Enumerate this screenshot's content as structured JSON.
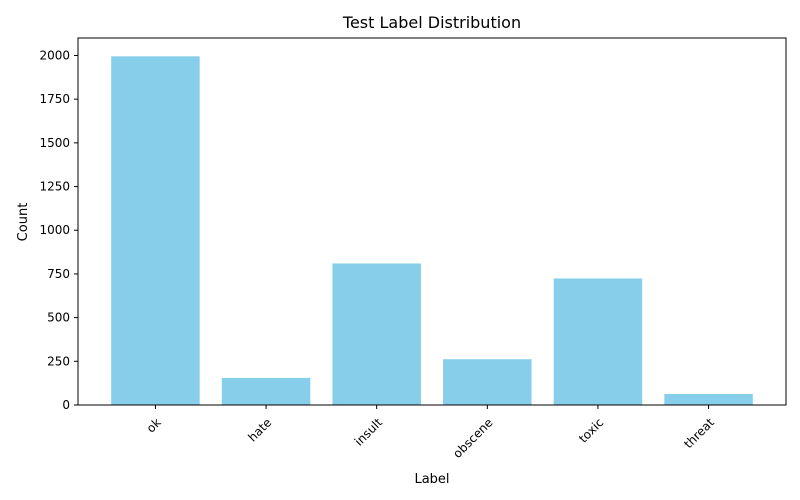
{
  "chart_data": {
    "type": "bar",
    "title": "Test Label Distribution",
    "xlabel": "Label",
    "ylabel": "Count",
    "categories": [
      "ok",
      "hate",
      "insult",
      "obscene",
      "toxic",
      "threat"
    ],
    "values": [
      1995,
      155,
      810,
      262,
      724,
      63
    ],
    "ylim": [
      0,
      2100
    ],
    "yticks": [
      0,
      250,
      500,
      750,
      1000,
      1250,
      1500,
      1750,
      2000
    ],
    "bar_color": "#87CEEB",
    "grid": false,
    "legend": "none"
  }
}
